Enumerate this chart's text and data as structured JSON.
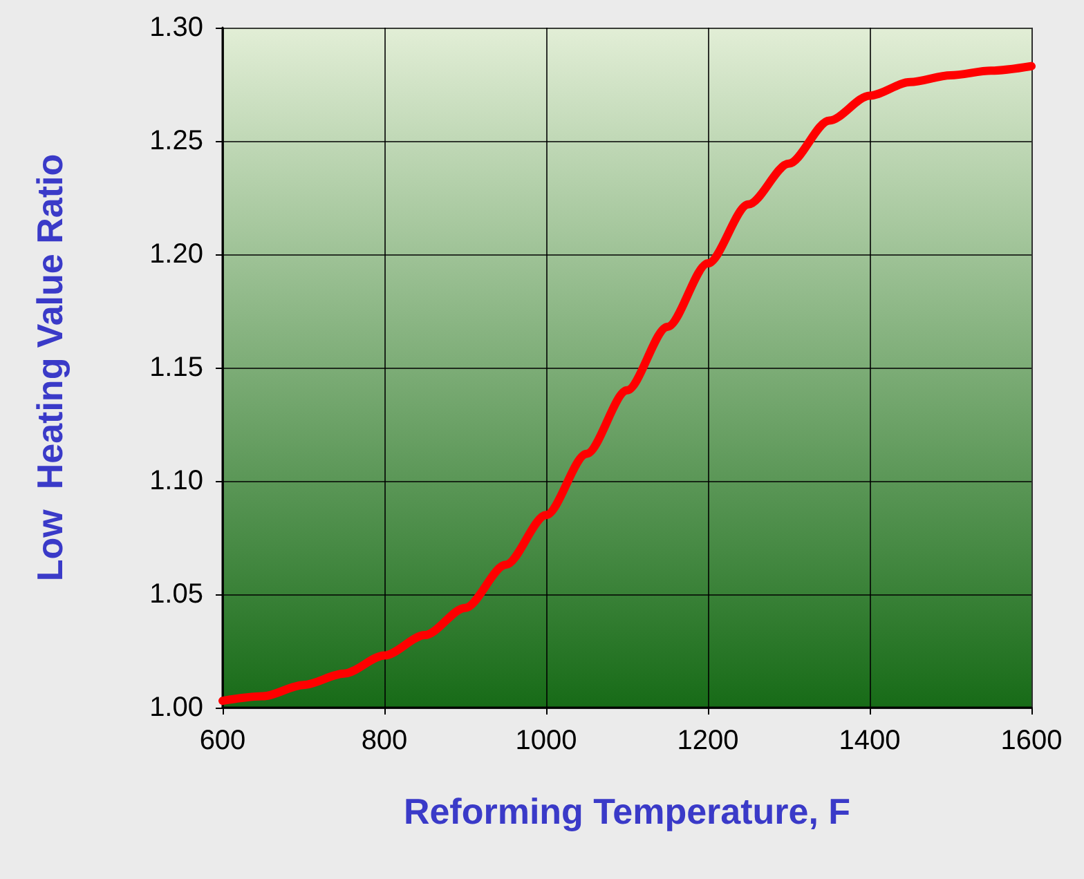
{
  "chart_data": {
    "type": "line",
    "xlabel": "Reforming Temperature, F",
    "ylabel": "Low  Heating Value Ratio",
    "x": [
      600,
      650,
      700,
      750,
      800,
      850,
      900,
      950,
      1000,
      1050,
      1100,
      1150,
      1200,
      1250,
      1300,
      1350,
      1400,
      1450,
      1500,
      1550,
      1600
    ],
    "series": [
      {
        "color": "#ff0000",
        "values": [
          1.003,
          1.005,
          1.01,
          1.015,
          1.023,
          1.032,
          1.044,
          1.063,
          1.085,
          1.112,
          1.14,
          1.168,
          1.196,
          1.222,
          1.24,
          1.259,
          1.27,
          1.276,
          1.279,
          1.281,
          1.283
        ]
      }
    ],
    "xlim": [
      600,
      1600
    ],
    "xticks": [
      600,
      800,
      1000,
      1200,
      1400,
      1600
    ],
    "ylim": [
      1.0,
      1.3
    ],
    "yticks": [
      {
        "value": 1.0,
        "label": "1.00"
      },
      {
        "value": 1.05,
        "label": "1.05"
      },
      {
        "value": 1.1,
        "label": "1.10"
      },
      {
        "value": 1.15,
        "label": "1.15"
      },
      {
        "value": 1.2,
        "label": "1.20"
      },
      {
        "value": 1.25,
        "label": "1.25"
      },
      {
        "value": 1.3,
        "label": "1.30"
      }
    ],
    "grid": true,
    "marker": "none",
    "line_style": "solid"
  }
}
